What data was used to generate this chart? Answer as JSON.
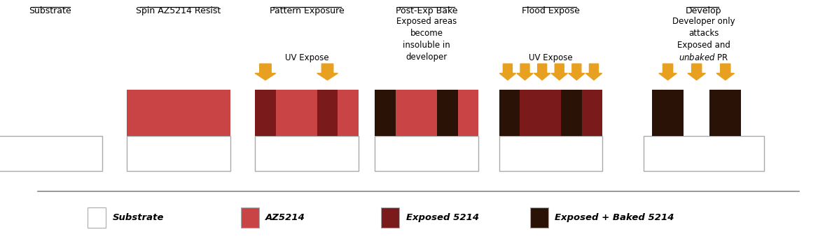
{
  "bg_color": "#ffffff",
  "colors": {
    "substrate": "#ffffff",
    "substrate_edge": "#aaaaaa",
    "az5214": "#c94444",
    "exposed5214": "#7a1a1a",
    "exposed_baked5214": "#2b1206",
    "arrow": "#e8a020"
  },
  "fig_width": 11.88,
  "fig_height": 3.41,
  "dpi": 100,
  "step_labels": [
    "Substrate",
    "Spin AZ5214 Resist",
    "Pattern Exposure",
    "Post-Exp Bake",
    "Flood Expose",
    "Develop"
  ],
  "legend_labels": [
    "Substrate",
    "AZ5214",
    "Exposed 5214",
    "Exposed + Baked 5214"
  ]
}
